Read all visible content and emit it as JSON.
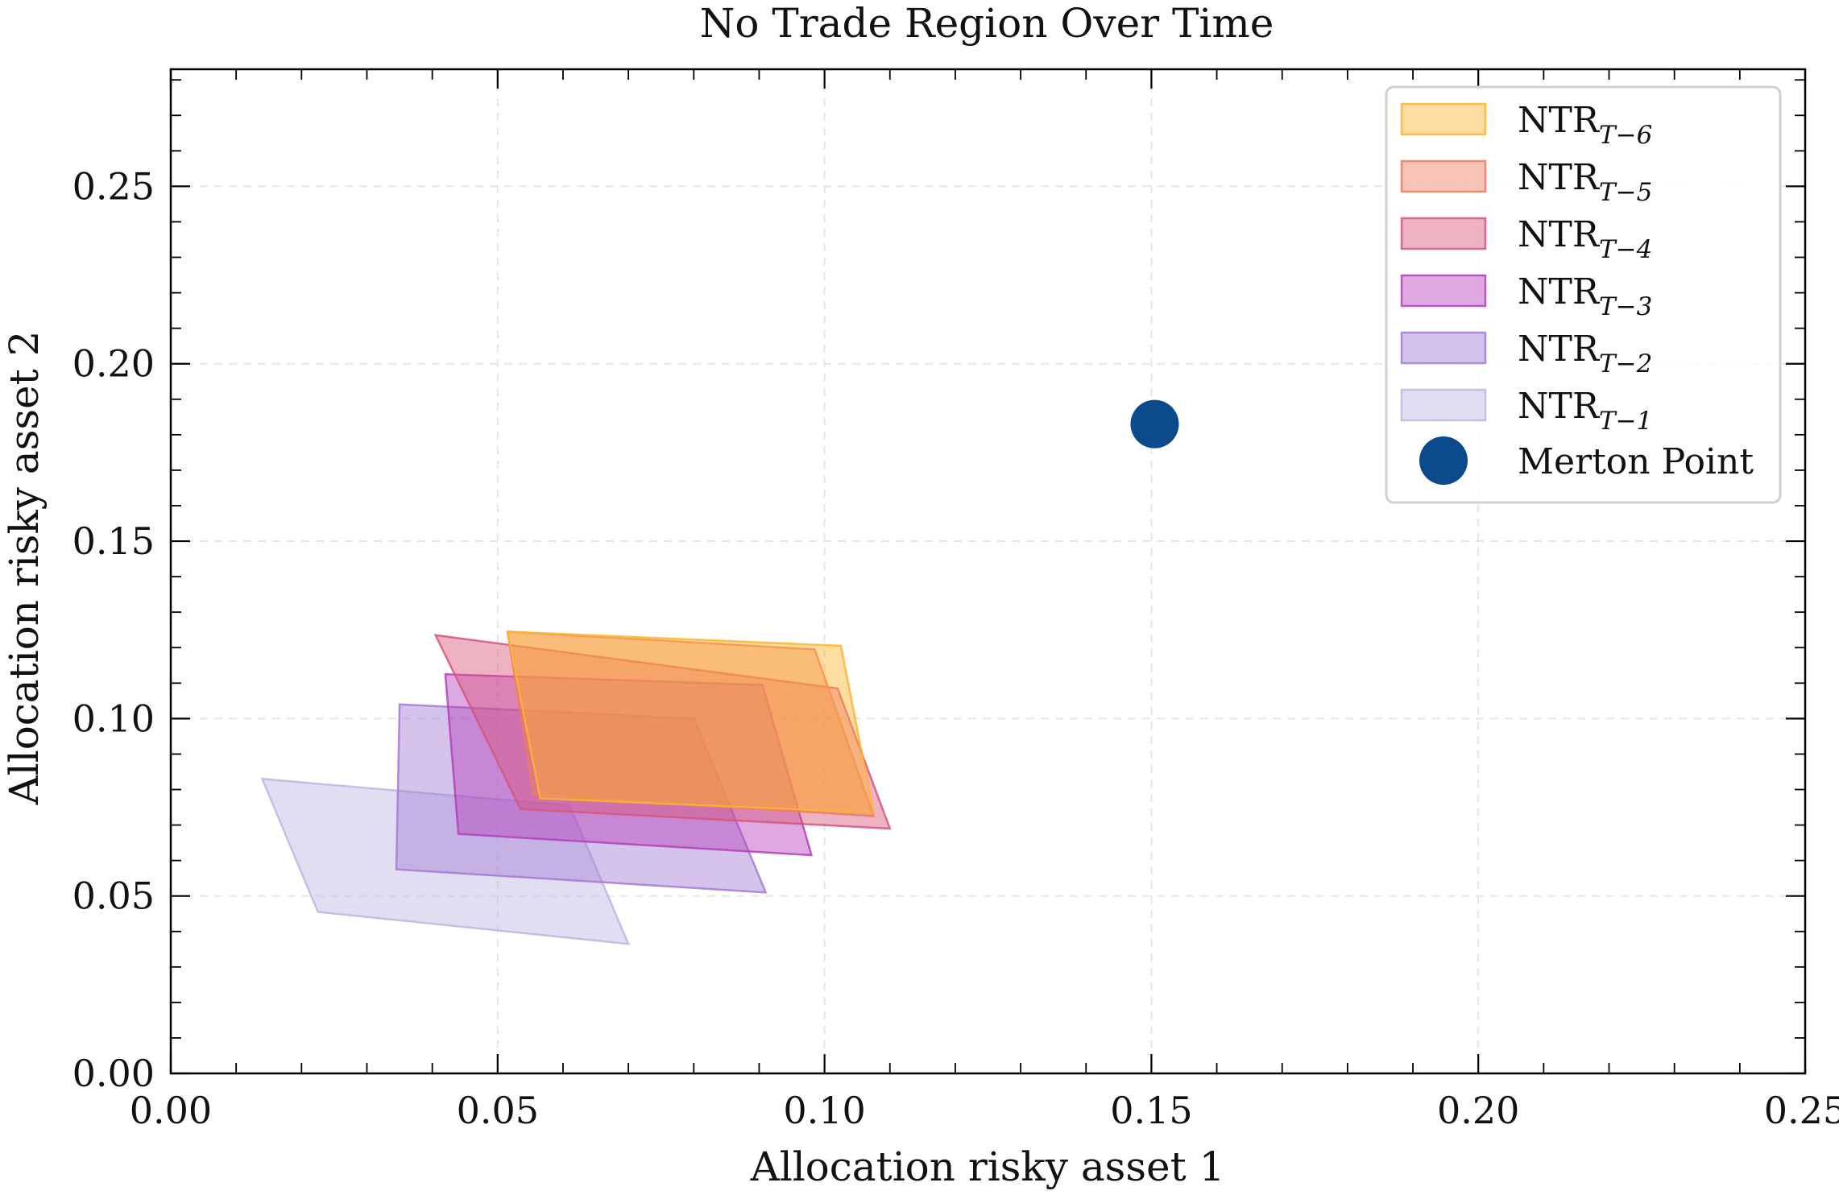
{
  "chart_data": {
    "type": "area",
    "title": "No Trade Region Over Time",
    "xlabel": "Allocation risky asset 1",
    "ylabel": "Allocation risky asset 2",
    "xlim": [
      0.0,
      0.25
    ],
    "ylim": [
      0.0,
      0.283
    ],
    "xticks": [
      0.0,
      0.05,
      0.1,
      0.15,
      0.2,
      0.25
    ],
    "xtick_labels": [
      "0.00",
      "0.05",
      "0.10",
      "0.15",
      "0.20",
      "0.25"
    ],
    "yticks": [
      0.0,
      0.05,
      0.1,
      0.15,
      0.2,
      0.25
    ],
    "ytick_labels": [
      "0.00",
      "0.05",
      "0.10",
      "0.15",
      "0.20",
      "0.25"
    ],
    "grid": true,
    "legend_position": "top-right",
    "series": [
      {
        "name_main": "NTR",
        "name_sub": "T−6",
        "color": "#fdb42f",
        "polygon": [
          [
            0.0515,
            0.1245
          ],
          [
            0.1025,
            0.1205
          ],
          [
            0.1075,
            0.0735
          ],
          [
            0.0565,
            0.0775
          ]
        ]
      },
      {
        "name_main": "NTR",
        "name_sub": "T−5",
        "color": "#ef7d5f",
        "polygon": [
          [
            0.0515,
            0.1245
          ],
          [
            0.0985,
            0.1195
          ],
          [
            0.1075,
            0.0725
          ],
          [
            0.0555,
            0.0785
          ]
        ]
      },
      {
        "name_main": "NTR",
        "name_sub": "T−4",
        "color": "#d6567a",
        "polygon": [
          [
            0.0405,
            0.1235
          ],
          [
            0.102,
            0.1085
          ],
          [
            0.11,
            0.069
          ],
          [
            0.0535,
            0.0745
          ]
        ]
      },
      {
        "name_main": "NTR",
        "name_sub": "T−3",
        "color": "#b53fbb",
        "polygon": [
          [
            0.042,
            0.1125
          ],
          [
            0.0905,
            0.1095
          ],
          [
            0.098,
            0.0615
          ],
          [
            0.044,
            0.0675
          ]
        ]
      },
      {
        "name_main": "NTR",
        "name_sub": "T−2",
        "color": "#a57ad3",
        "polygon": [
          [
            0.035,
            0.104
          ],
          [
            0.08,
            0.1
          ],
          [
            0.091,
            0.051
          ],
          [
            0.0345,
            0.0575
          ]
        ]
      },
      {
        "name_main": "NTR",
        "name_sub": "T−1",
        "color": "#bcb6e2",
        "polygon": [
          [
            0.014,
            0.083
          ],
          [
            0.061,
            0.0755
          ],
          [
            0.07,
            0.0365
          ],
          [
            0.0225,
            0.0455
          ]
        ]
      }
    ],
    "points": [
      {
        "name": "Merton Point",
        "x": 0.1505,
        "y": 0.183,
        "color": "#0b4a8b"
      }
    ]
  }
}
